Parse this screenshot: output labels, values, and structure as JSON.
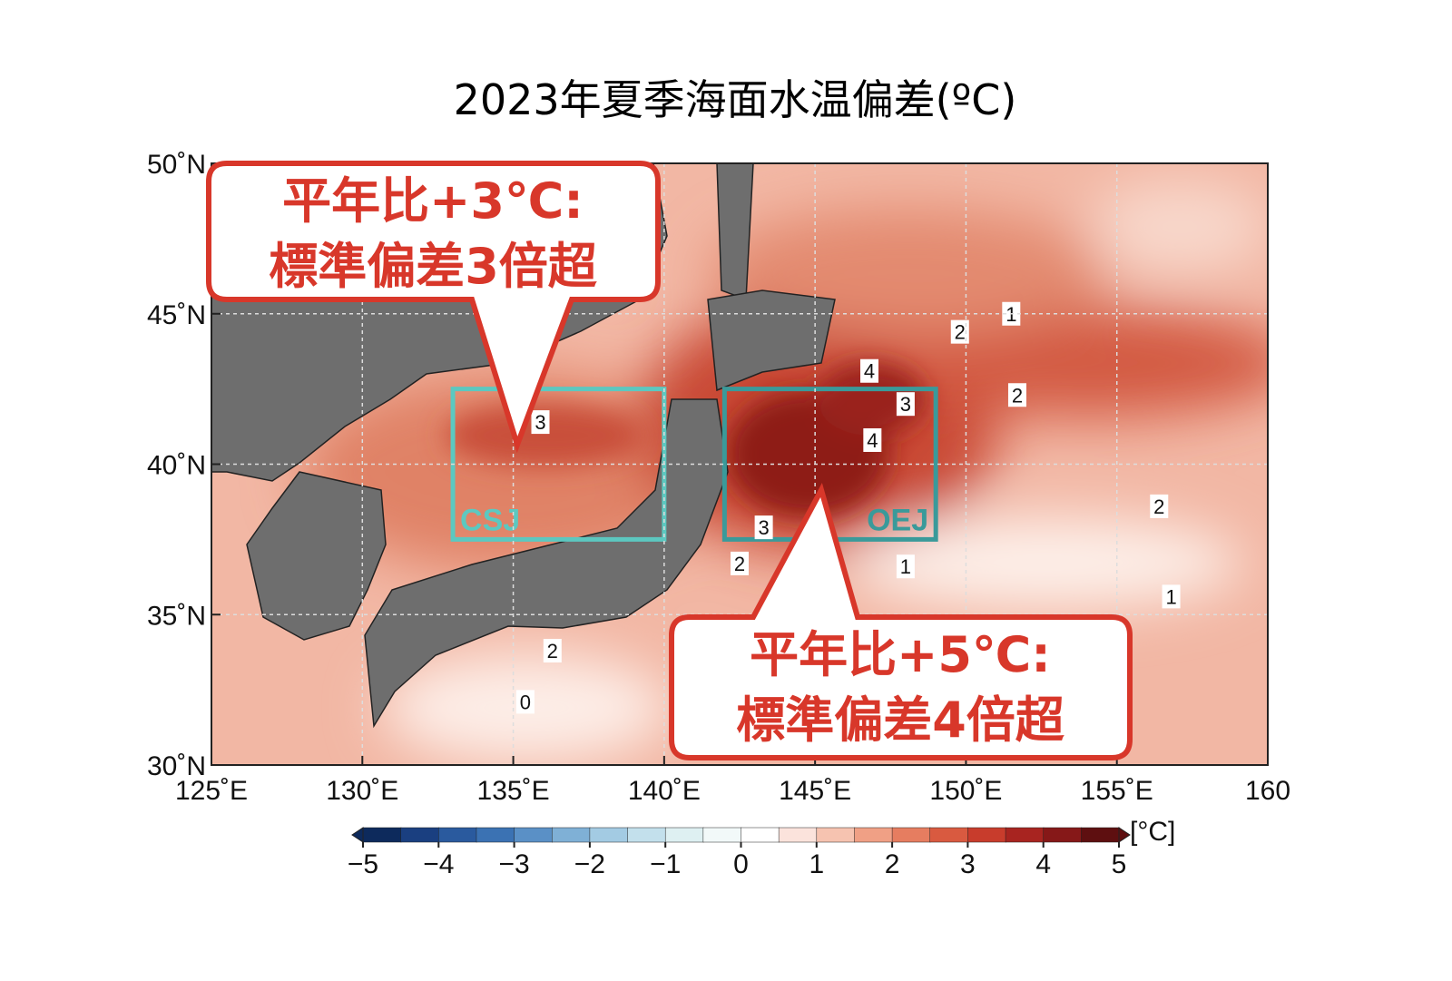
{
  "title": "2023年夏季海面水温偏差(ºC)",
  "map": {
    "lon_range": [
      125,
      160
    ],
    "lat_range": [
      30,
      50
    ],
    "lon_ticks": [
      {
        "value": 125,
        "label": "125˚E"
      },
      {
        "value": 130,
        "label": "130˚E"
      },
      {
        "value": 135,
        "label": "135˚E"
      },
      {
        "value": 140,
        "label": "140˚E"
      },
      {
        "value": 145,
        "label": "145˚E"
      },
      {
        "value": 150,
        "label": "150˚E"
      },
      {
        "value": 155,
        "label": "155˚E"
      },
      {
        "value": 160,
        "label": "160"
      }
    ],
    "lat_ticks": [
      {
        "value": 30,
        "label": "30˚N"
      },
      {
        "value": 35,
        "label": "35˚N"
      },
      {
        "value": 40,
        "label": "40˚N"
      },
      {
        "value": 45,
        "label": "45˚N"
      },
      {
        "value": 50,
        "label": "50˚N"
      }
    ],
    "regions": [
      {
        "label": "CSJ",
        "lon": [
          133,
          140
        ],
        "lat": [
          37.5,
          42.5
        ],
        "color": "#5cc8c0"
      },
      {
        "label": "OEJ",
        "lon": [
          142,
          149
        ],
        "lat": [
          37.5,
          42.5
        ],
        "color": "#3a9a9a"
      }
    ],
    "contour_labels": [
      {
        "value": 3,
        "lon": 135.9,
        "lat": 41.4
      },
      {
        "value": 4,
        "lon": 146.8,
        "lat": 43.1
      },
      {
        "value": 3,
        "lon": 148.0,
        "lat": 42.0
      },
      {
        "value": 4,
        "lon": 146.9,
        "lat": 40.8
      },
      {
        "value": 3,
        "lon": 143.3,
        "lat": 37.9
      },
      {
        "value": 2,
        "lon": 142.5,
        "lat": 36.7
      },
      {
        "value": 1,
        "lon": 148.0,
        "lat": 36.6
      },
      {
        "value": 2,
        "lon": 151.7,
        "lat": 42.3
      },
      {
        "value": 2,
        "lon": 149.8,
        "lat": 44.4
      },
      {
        "value": 1,
        "lon": 151.5,
        "lat": 45.0
      },
      {
        "value": 2,
        "lon": 156.4,
        "lat": 38.6
      },
      {
        "value": 1,
        "lon": 156.8,
        "lat": 35.6
      },
      {
        "value": 2,
        "lon": 136.3,
        "lat": 33.8
      },
      {
        "value": 0,
        "lon": 135.4,
        "lat": 32.1
      }
    ]
  },
  "callouts": [
    {
      "lines": [
        "平年比+3℃:",
        "標準偏差3倍超"
      ]
    },
    {
      "lines": [
        "平年比+5℃:",
        "標準偏差4倍超"
      ]
    }
  ],
  "colorbar": {
    "lim": [
      -5,
      5
    ],
    "unit": "[°C]",
    "colors": [
      "#0d2a5c",
      "#1a3f80",
      "#2a5a9e",
      "#3b72b3",
      "#5a90c6",
      "#7fb0d6",
      "#a3cbe3",
      "#c3e0ec",
      "#def0f2",
      "#f2f9f9",
      "#ffffff",
      "#fbe3dc",
      "#f6c3b0",
      "#f0a085",
      "#e67d60",
      "#d95a40",
      "#c83c2c",
      "#a82420",
      "#861818",
      "#5e0f10"
    ],
    "ticks": [
      {
        "value": -5,
        "label": "−5"
      },
      {
        "value": -4,
        "label": "−4"
      },
      {
        "value": -3,
        "label": "−3"
      },
      {
        "value": -2,
        "label": "−2"
      },
      {
        "value": -1,
        "label": "−1"
      },
      0,
      1,
      2,
      3,
      4,
      5
    ]
  }
}
